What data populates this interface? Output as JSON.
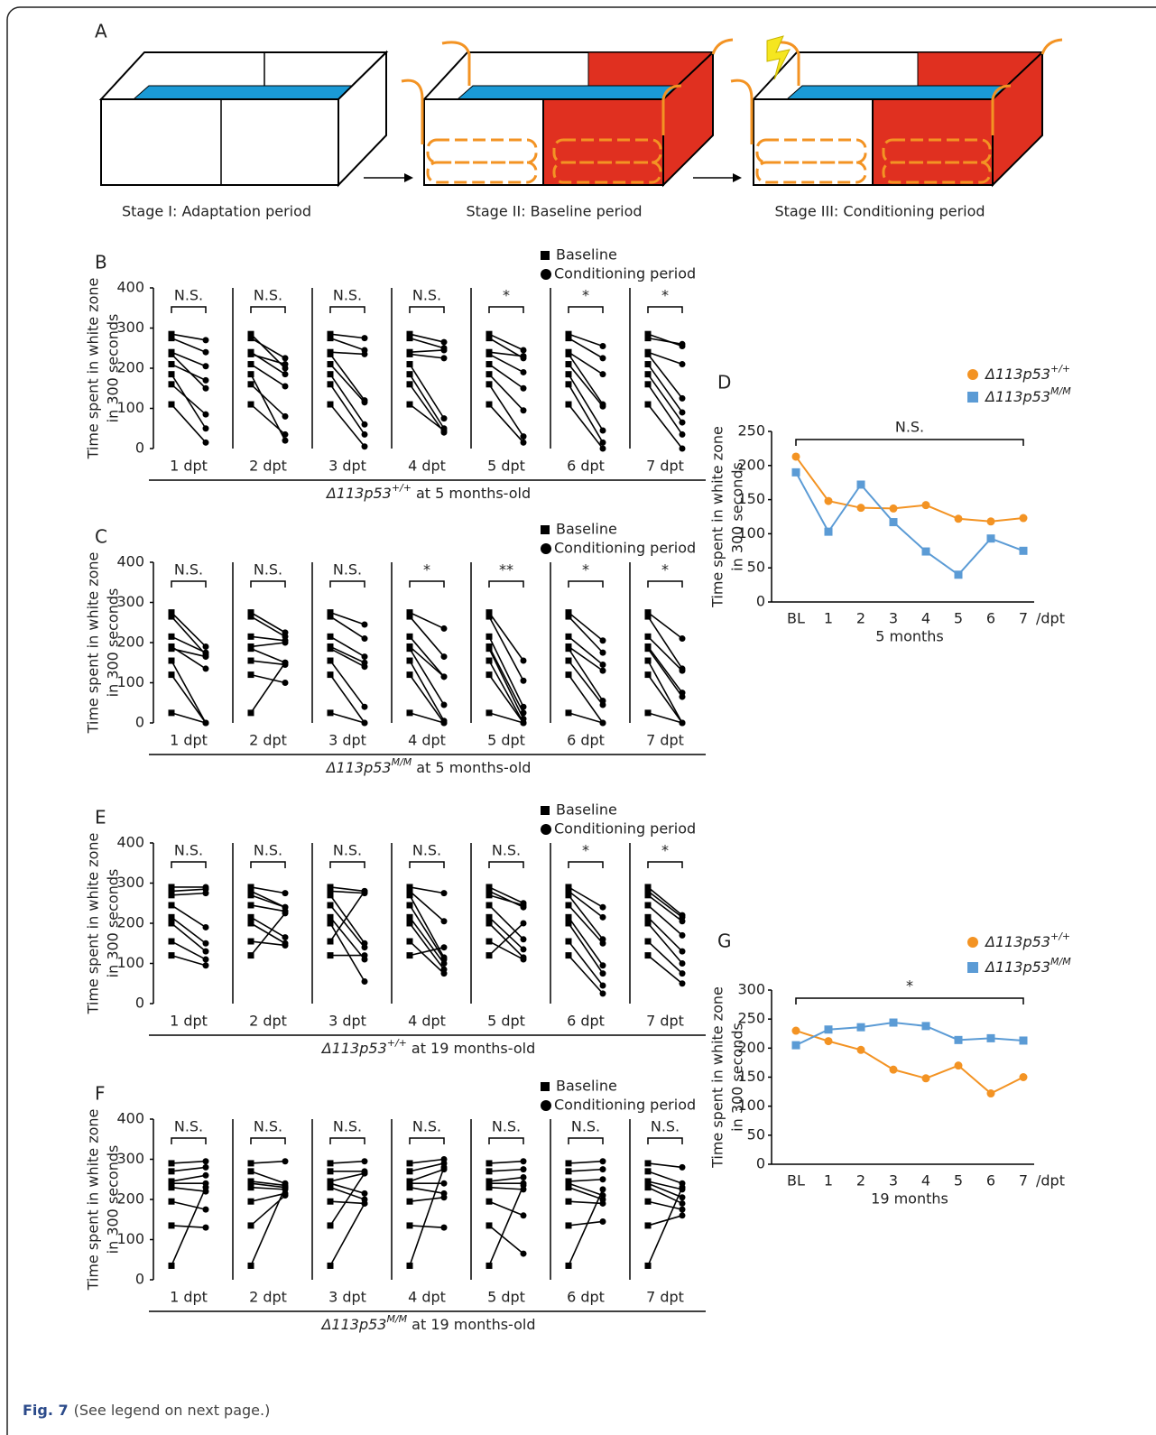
{
  "figure": {
    "panel_a": {
      "label": "A",
      "stages": [
        "Stage I: Adaptation period",
        "Stage II: Baseline period",
        "Stage III: Conditioning period"
      ]
    },
    "caption": {
      "label": "Fig. 7",
      "text": "(See legend on next page.)"
    }
  },
  "chart_data": [
    {
      "type": "paired",
      "label": "B",
      "legend": [
        "Baseline",
        "Conditioning period"
      ],
      "ylabel": [
        "Time spent in white zone",
        "in 300 seconds"
      ],
      "ylim": [
        0,
        400
      ],
      "yticks": [
        0,
        100,
        200,
        300,
        400
      ],
      "group_label": {
        "gene": "Δ113p53",
        "genotype": "+/+",
        "suffix": "at 5 months-old"
      },
      "baseline": [
        285,
        275,
        240,
        235,
        210,
        185,
        160,
        110
      ],
      "groups": [
        {
          "label": "1 dpt",
          "significance": "N.S.",
          "values": [
            270,
            240,
            205,
            150,
            170,
            50,
            85,
            15
          ]
        },
        {
          "label": "2 dpt",
          "significance": "N.S.",
          "values": [
            200,
            225,
            185,
            210,
            155,
            20,
            80,
            35
          ]
        },
        {
          "label": "3 dpt",
          "significance": "N.S.",
          "values": [
            275,
            245,
            235,
            120,
            115,
            60,
            35,
            5
          ]
        },
        {
          "label": "4 dpt",
          "significance": "N.S.",
          "values": [
            265,
            250,
            245,
            225,
            75,
            50,
            40,
            45
          ]
        },
        {
          "label": "5 dpt",
          "significance": "*",
          "values": [
            245,
            225,
            230,
            190,
            150,
            95,
            30,
            15
          ]
        },
        {
          "label": "6 dpt",
          "significance": "*",
          "values": [
            255,
            225,
            185,
            110,
            105,
            45,
            15,
            0
          ]
        },
        {
          "label": "7 dpt",
          "significance": "*",
          "values": [
            255,
            260,
            210,
            125,
            90,
            65,
            35,
            0
          ]
        }
      ]
    },
    {
      "type": "paired",
      "label": "C",
      "legend": [
        "Baseline",
        "Conditioning period"
      ],
      "ylabel": [
        "Time spent in white zone",
        "in 300 seconds"
      ],
      "ylim": [
        0,
        400
      ],
      "yticks": [
        0,
        100,
        200,
        300,
        400
      ],
      "group_label": {
        "gene": "Δ113p53",
        "genotype": "M/M",
        "suffix": "at 5 months-old"
      },
      "baseline": [
        275,
        265,
        215,
        190,
        185,
        155,
        120,
        25
      ],
      "groups": [
        {
          "label": "1 dpt",
          "significance": "N.S.",
          "values": [
            190,
            170,
            175,
            135,
            165,
            0,
            0,
            0
          ]
        },
        {
          "label": "2 dpt",
          "significance": "N.S.",
          "values": [
            225,
            215,
            205,
            200,
            150,
            145,
            100,
            150
          ]
        },
        {
          "label": "3 dpt",
          "significance": "N.S.",
          "values": [
            245,
            210,
            165,
            150,
            140,
            40,
            0,
            0
          ]
        },
        {
          "label": "4 dpt",
          "significance": "*",
          "values": [
            235,
            165,
            115,
            115,
            45,
            5,
            0,
            0
          ]
        },
        {
          "label": "5 dpt",
          "significance": "**",
          "values": [
            155,
            105,
            40,
            25,
            10,
            0,
            0,
            0
          ]
        },
        {
          "label": "6 dpt",
          "significance": "*",
          "values": [
            205,
            175,
            145,
            130,
            55,
            45,
            0,
            0
          ]
        },
        {
          "label": "7 dpt",
          "significance": "*",
          "values": [
            210,
            135,
            130,
            75,
            65,
            0,
            0,
            0
          ]
        }
      ]
    },
    {
      "type": "line",
      "label": "D",
      "ylabel": [
        "Time spent in white zone",
        "in 300 seconds"
      ],
      "categories": [
        "BL",
        "1",
        "2",
        "3",
        "4",
        "5",
        "6",
        "7"
      ],
      "x_unit": "/dpt",
      "xlabel": "5 months",
      "significance": "N.S.",
      "ylim": [
        0,
        250
      ],
      "yticks": [
        0,
        50,
        100,
        150,
        200,
        250
      ],
      "series": [
        {
          "name": "Δ113p53",
          "genotype": "+/+",
          "color": "#f39323",
          "marker": "circle",
          "values": [
            213,
            148,
            138,
            137,
            142,
            122,
            118,
            123
          ]
        },
        {
          "name": "Δ113p53",
          "genotype": "M/M",
          "color": "#5b9bd5",
          "marker": "square",
          "values": [
            190,
            103,
            172,
            117,
            74,
            40,
            93,
            75
          ]
        }
      ]
    },
    {
      "type": "paired",
      "label": "E",
      "legend": [
        "Baseline",
        "Conditioning period"
      ],
      "ylabel": [
        "Time spent in white zone",
        "in 300 seconds"
      ],
      "ylim": [
        0,
        400
      ],
      "yticks": [
        0,
        100,
        200,
        300,
        400
      ],
      "group_label": {
        "gene": "Δ113p53",
        "genotype": "+/+",
        "suffix": "at 19 months-old"
      },
      "baseline": [
        290,
        280,
        270,
        245,
        215,
        200,
        155,
        120
      ],
      "groups": [
        {
          "label": "1 dpt",
          "significance": "N.S.",
          "values": [
            290,
            285,
            275,
            190,
            150,
            130,
            110,
            95
          ]
        },
        {
          "label": "2 dpt",
          "significance": "N.S.",
          "values": [
            275,
            240,
            240,
            230,
            165,
            150,
            145,
            225
          ]
        },
        {
          "label": "3 dpt",
          "significance": "N.S.",
          "values": [
            280,
            275,
            150,
            140,
            110,
            55,
            280,
            120
          ]
        },
        {
          "label": "4 dpt",
          "significance": "N.S.",
          "values": [
            275,
            205,
            115,
            110,
            100,
            85,
            75,
            140
          ]
        },
        {
          "label": "5 dpt",
          "significance": "N.S.",
          "values": [
            250,
            240,
            245,
            160,
            135,
            115,
            110,
            200
          ]
        },
        {
          "label": "6 dpt",
          "significance": "*",
          "values": [
            240,
            215,
            160,
            150,
            95,
            75,
            45,
            25
          ]
        },
        {
          "label": "7 dpt",
          "significance": "*",
          "values": [
            220,
            215,
            205,
            170,
            130,
            100,
            75,
            50
          ]
        }
      ]
    },
    {
      "type": "paired",
      "label": "F",
      "legend": [
        "Baseline",
        "Conditioning period"
      ],
      "ylabel": [
        "Time spent in white zone",
        "in 300 seconds"
      ],
      "ylim": [
        0,
        400
      ],
      "yticks": [
        0,
        100,
        200,
        300,
        400
      ],
      "group_label": {
        "gene": "Δ113p53",
        "genotype": "M/M",
        "suffix": "at 19 months-old"
      },
      "baseline": [
        290,
        270,
        245,
        240,
        230,
        195,
        135,
        35
      ],
      "groups": [
        {
          "label": "1 dpt",
          "significance": "N.S.",
          "values": [
            295,
            280,
            260,
            240,
            220,
            175,
            130,
            230
          ]
        },
        {
          "label": "2 dpt",
          "significance": "N.S.",
          "values": [
            295,
            240,
            235,
            230,
            225,
            215,
            210,
            230
          ]
        },
        {
          "label": "3 dpt",
          "significance": "N.S.",
          "values": [
            295,
            270,
            265,
            215,
            200,
            190,
            265,
            190
          ]
        },
        {
          "label": "4 dpt",
          "significance": "N.S.",
          "values": [
            300,
            290,
            275,
            240,
            215,
            205,
            130,
            280
          ]
        },
        {
          "label": "5 dpt",
          "significance": "N.S.",
          "values": [
            295,
            275,
            255,
            240,
            225,
            160,
            65,
            235
          ]
        },
        {
          "label": "6 dpt",
          "significance": "N.S.",
          "values": [
            295,
            275,
            250,
            210,
            200,
            190,
            145,
            225
          ]
        },
        {
          "label": "7 dpt",
          "significance": "N.S.",
          "values": [
            280,
            240,
            225,
            205,
            190,
            175,
            160,
            230
          ]
        }
      ]
    },
    {
      "type": "line",
      "label": "G",
      "ylabel": [
        "Time spent in white zone",
        "in 300 seconds"
      ],
      "categories": [
        "BL",
        "1",
        "2",
        "3",
        "4",
        "5",
        "6",
        "7"
      ],
      "x_unit": "/dpt",
      "xlabel": "19 months",
      "significance": "*",
      "ylim": [
        0,
        300
      ],
      "yticks": [
        0,
        50,
        100,
        150,
        200,
        250,
        300
      ],
      "series": [
        {
          "name": "Δ113p53",
          "genotype": "+/+",
          "color": "#f39323",
          "marker": "circle",
          "values": [
            230,
            212,
            197,
            163,
            148,
            170,
            122,
            150
          ]
        },
        {
          "name": "Δ113p53",
          "genotype": "M/M",
          "color": "#5b9bd5",
          "marker": "square",
          "values": [
            205,
            232,
            236,
            244,
            238,
            214,
            217,
            213
          ]
        }
      ]
    }
  ]
}
